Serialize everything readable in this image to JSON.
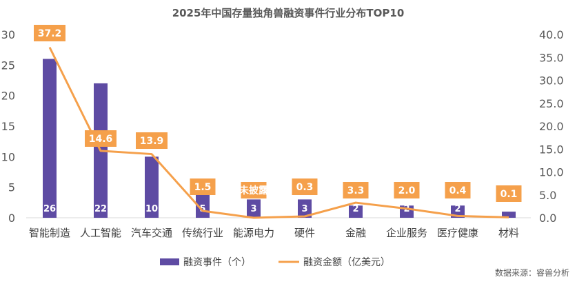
{
  "chart_data": {
    "type": "bar+line",
    "title": "2025年中国存量独角兽融资事件行业分布TOP10",
    "categories": [
      "智能制造",
      "人工智能",
      "汽车交通",
      "传统行业",
      "能源电力",
      "硬件",
      "金融",
      "企业服务",
      "医疗健康",
      "材料"
    ],
    "series": [
      {
        "name": "融资事件（个）",
        "type": "bar",
        "axis": "left",
        "color": "#5E4BA3",
        "values": [
          26,
          22,
          10,
          5,
          3,
          3,
          2,
          2,
          2,
          1
        ]
      },
      {
        "name": "融资金额（亿美元）",
        "type": "line",
        "axis": "right",
        "color": "#F5A04B",
        "values": [
          37.2,
          14.6,
          13.9,
          1.5,
          0,
          0.3,
          3.3,
          2.0,
          0.4,
          0.1
        ],
        "labels": [
          "37.2",
          "14.6",
          "13.9",
          "1.5",
          "未披露",
          "0.3",
          "3.3",
          "2.0",
          "0.4",
          "0.1"
        ]
      }
    ],
    "left_axis": {
      "ylim": [
        0,
        30
      ],
      "ticks": [
        "0",
        "5",
        "10",
        "15",
        "20",
        "25",
        "30"
      ]
    },
    "right_axis": {
      "ylim": [
        0,
        40
      ],
      "ticks": [
        "0.0",
        "5.0",
        "10.0",
        "15.0",
        "20.0",
        "25.0",
        "30.0",
        "35.0",
        "40.0"
      ]
    },
    "grid": false,
    "legend": "bottom"
  },
  "source": "数据来源：睿兽分析"
}
